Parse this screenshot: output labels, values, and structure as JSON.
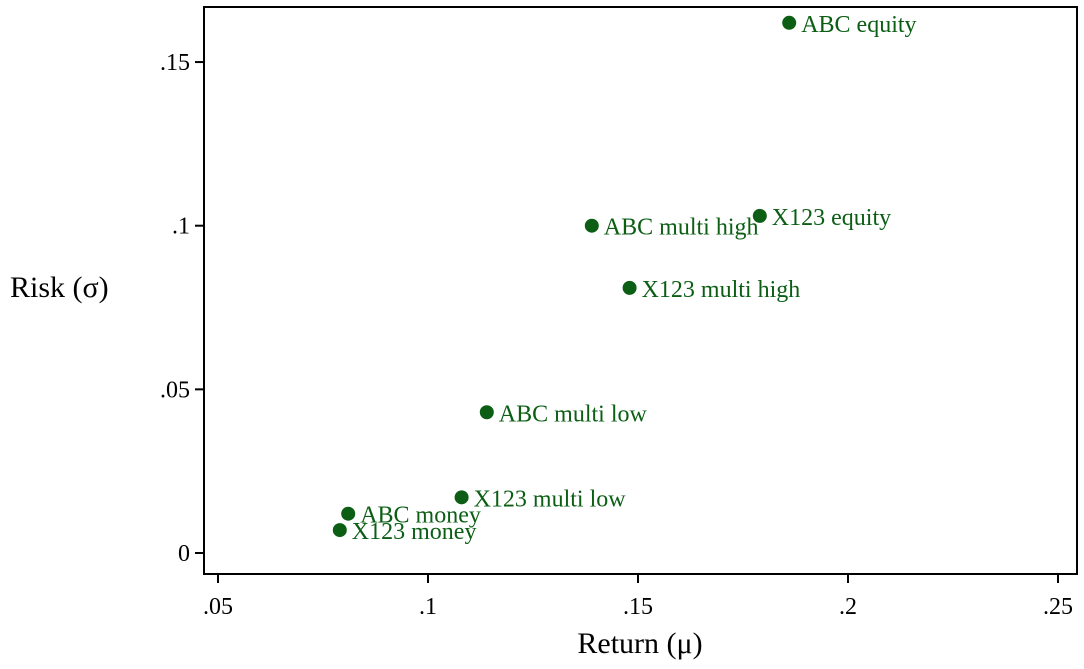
{
  "chart_data": {
    "type": "scatter",
    "title": "",
    "xlabel": "Return (μ)",
    "ylabel": "Risk (σ)",
    "xlim": [
      0.05,
      0.25
    ],
    "ylim": [
      0,
      0.165
    ],
    "xticks": [
      0.05,
      0.1,
      0.15,
      0.2,
      0.25
    ],
    "xtick_labels": [
      ".05",
      ".1",
      ".15",
      ".2",
      ".25"
    ],
    "yticks": [
      0,
      0.05,
      0.1,
      0.15
    ],
    "ytick_labels": [
      "0",
      ".05",
      ".1",
      ".15"
    ],
    "grid": false,
    "legend": "none",
    "marker_color": "#0b5e14",
    "points": [
      {
        "label": "ABC equity",
        "x": 0.186,
        "y": 0.162
      },
      {
        "label": "X123 equity",
        "x": 0.179,
        "y": 0.103
      },
      {
        "label": "ABC multi high",
        "x": 0.139,
        "y": 0.1
      },
      {
        "label": "X123 multi high",
        "x": 0.148,
        "y": 0.081
      },
      {
        "label": "ABC multi low",
        "x": 0.114,
        "y": 0.043
      },
      {
        "label": "X123 multi low",
        "x": 0.108,
        "y": 0.017
      },
      {
        "label": "ABC money",
        "x": 0.081,
        "y": 0.012
      },
      {
        "label": "X123 money",
        "x": 0.079,
        "y": 0.007
      }
    ]
  }
}
